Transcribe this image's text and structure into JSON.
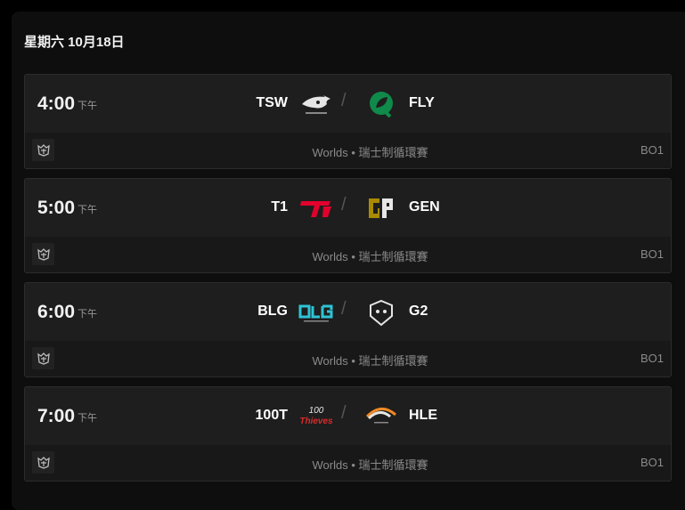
{
  "date_heading": "星期六 10月18日",
  "separator": "/",
  "matches": [
    {
      "time": "4:00",
      "ampm": "下午",
      "team1": "TSW",
      "team1_logo": "secret-whales-logo",
      "team2": "FLY",
      "team2_logo": "flyquest-logo",
      "event": "Worlds • 瑞士制循環賽",
      "format": "BO1",
      "team1_color": "#e6e6e6",
      "team2_color": "#0f8a4a"
    },
    {
      "time": "5:00",
      "ampm": "下午",
      "team1": "T1",
      "team1_logo": "t1-logo",
      "team2": "GEN",
      "team2_logo": "gen-g-logo",
      "event": "Worlds • 瑞士制循環賽",
      "format": "BO1",
      "team1_color": "#e2012d",
      "team2_color": "#aa8a00"
    },
    {
      "time": "6:00",
      "ampm": "下午",
      "team1": "BLG",
      "team1_logo": "blg-logo",
      "team2": "G2",
      "team2_logo": "g2-logo",
      "event": "Worlds • 瑞士制循環賽",
      "format": "BO1",
      "team1_color": "#2ec4d6",
      "team2_color": "#e6e6e6"
    },
    {
      "time": "7:00",
      "ampm": "下午",
      "team1": "100T",
      "team1_logo": "100-thieves-logo",
      "team2": "HLE",
      "team2_logo": "hanwha-life-logo",
      "event": "Worlds • 瑞士制循環賽",
      "format": "BO1",
      "team1_color": "#d92b2b",
      "team2_color": "#f08a24"
    }
  ]
}
